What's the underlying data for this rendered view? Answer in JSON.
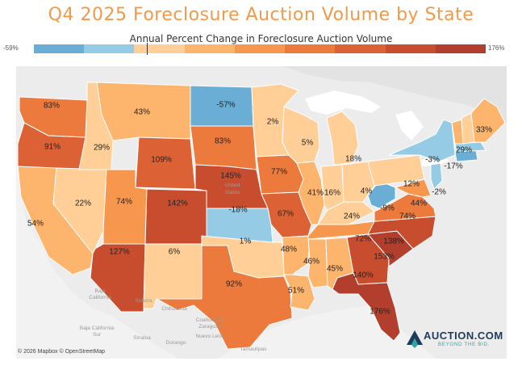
{
  "title": "Q4 2025 Foreclosure Auction Volume by State",
  "legend": {
    "title": "Annual Percent Change in Foreclosure Auction Volume",
    "min_label": "-59%",
    "max_label": "176%",
    "colors": [
      "#6aaed6",
      "#95cbe4",
      "#ffcf97",
      "#fdb56e",
      "#f7964d",
      "#ec7a3c",
      "#dc6134",
      "#c84d2f",
      "#b23f2d"
    ]
  },
  "states": [
    {
      "abbr": "WA",
      "label": "83%"
    },
    {
      "abbr": "OR",
      "label": "91%"
    },
    {
      "abbr": "CA",
      "label": "54%"
    },
    {
      "abbr": "NV",
      "label": "22%"
    },
    {
      "abbr": "ID",
      "label": "29%"
    },
    {
      "abbr": "MT",
      "label": "43%"
    },
    {
      "abbr": "WY",
      "label": "109%"
    },
    {
      "abbr": "UT",
      "label": "74%"
    },
    {
      "abbr": "AZ",
      "label": "127%"
    },
    {
      "abbr": "CO",
      "label": "142%"
    },
    {
      "abbr": "NM",
      "label": "6%"
    },
    {
      "abbr": "ND",
      "label": "-57%"
    },
    {
      "abbr": "SD",
      "label": "83%"
    },
    {
      "abbr": "NE",
      "label": "145%"
    },
    {
      "abbr": "KS",
      "label": "-18%"
    },
    {
      "abbr": "OK",
      "label": "1%"
    },
    {
      "abbr": "TX",
      "label": "92%"
    },
    {
      "abbr": "MN",
      "label": "2%"
    },
    {
      "abbr": "IA",
      "label": "77%"
    },
    {
      "abbr": "MO",
      "label": "67%"
    },
    {
      "abbr": "AR",
      "label": "48%"
    },
    {
      "abbr": "LA",
      "label": "51%"
    },
    {
      "abbr": "WI",
      "label": "5%"
    },
    {
      "abbr": "IL",
      "label": "41%"
    },
    {
      "abbr": "MI",
      "label": "18%"
    },
    {
      "abbr": "IN",
      "label": "16%"
    },
    {
      "abbr": "OH",
      "label": "4%"
    },
    {
      "abbr": "KY",
      "label": "24%"
    },
    {
      "abbr": "TN",
      "label": "72%"
    },
    {
      "abbr": "MS",
      "label": "46%"
    },
    {
      "abbr": "AL",
      "label": "45%"
    },
    {
      "abbr": "GA",
      "label": "140%"
    },
    {
      "abbr": "FL",
      "label": "176%"
    },
    {
      "abbr": "SC",
      "label": "153%"
    },
    {
      "abbr": "NC",
      "label": "138%"
    },
    {
      "abbr": "VA",
      "label": "74%"
    },
    {
      "abbr": "WV",
      "label": "-9%"
    },
    {
      "abbr": "PA",
      "label": "12%"
    },
    {
      "abbr": "NY",
      "label": "-3%"
    },
    {
      "abbr": "MD",
      "label": "44%"
    },
    {
      "abbr": "NJ",
      "label": "-2%"
    },
    {
      "abbr": "CT",
      "label": "-17%"
    },
    {
      "abbr": "NH",
      "label": "29%"
    },
    {
      "abbr": "ME",
      "label": "33%"
    }
  ],
  "places": [
    "United",
    "States",
    "Baja",
    "California",
    "Sonora",
    "Chihuahua",
    "Coahuila de",
    "Zaragoza",
    "Nuevo León",
    "Baja California",
    "Sur",
    "Sinaloa",
    "Durango",
    "Tamaulipas"
  ],
  "attribution": "© 2026 Mapbox © OpenStreetMap",
  "logo": {
    "name": "AUCTION.COM",
    "tagline": "BEYOND THE BID.",
    "icon": "auction-logo-icon"
  }
}
